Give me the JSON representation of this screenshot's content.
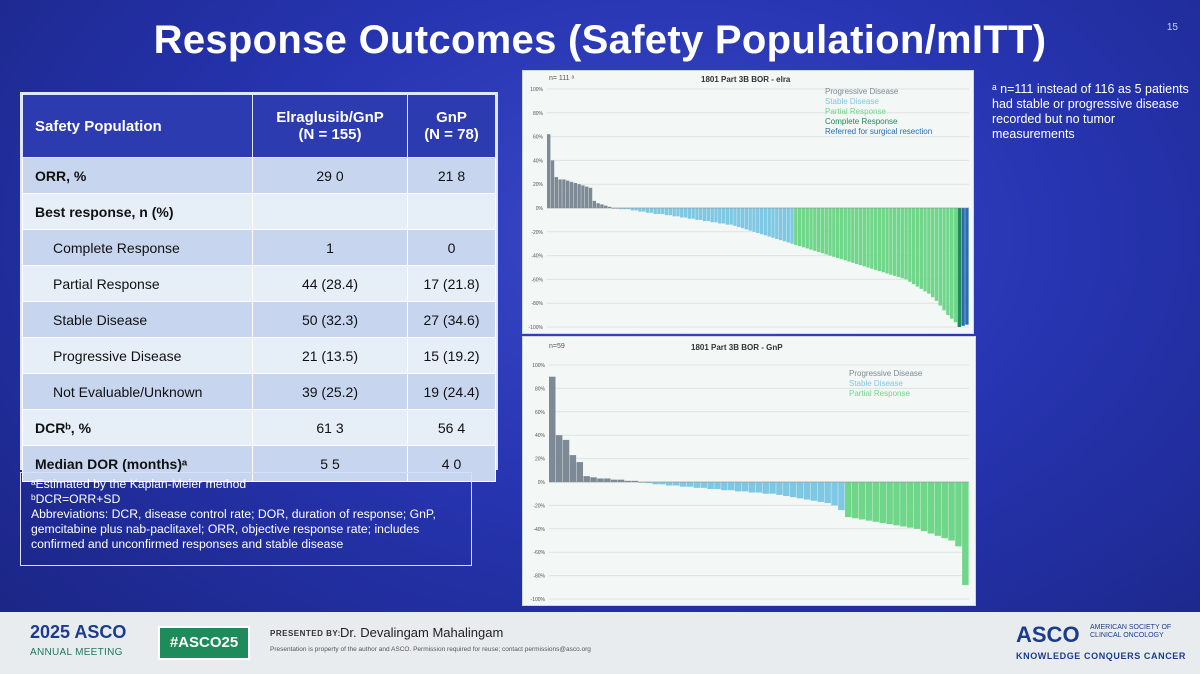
{
  "slide": {
    "title": "Response Outcomes (Safety Population/mITT)",
    "slide_number": "15"
  },
  "table": {
    "headers": [
      "Safety Population",
      "Elraglusib/GnP\n(N = 155)",
      "GnP\n(N = 78)"
    ],
    "rows": [
      {
        "label": "ORR, %",
        "v1": "29 0",
        "v2": "21 8",
        "bold": true,
        "indent": false
      },
      {
        "label": "Best response, n (%)",
        "v1": "",
        "v2": "",
        "bold": true,
        "indent": false
      },
      {
        "label": "Complete Response",
        "v1": "1",
        "v2": "0",
        "bold": false,
        "indent": true
      },
      {
        "label": "Partial Response",
        "v1": "44 (28.4)",
        "v2": "17 (21.8)",
        "bold": false,
        "indent": true
      },
      {
        "label": "Stable Disease",
        "v1": "50 (32.3)",
        "v2": "27 (34.6)",
        "bold": false,
        "indent": true
      },
      {
        "label": "Progressive Disease",
        "v1": "21 (13.5)",
        "v2": "15 (19.2)",
        "bold": false,
        "indent": true
      },
      {
        "label": "Not Evaluable/Unknown",
        "v1": "39 (25.2)",
        "v2": "19 (24.4)",
        "bold": false,
        "indent": true
      },
      {
        "label": "DCRᵇ, %",
        "v1": "61 3",
        "v2": "56 4",
        "bold": true,
        "indent": false
      },
      {
        "label": "Median DOR (months)ᵃ",
        "v1": "5 5",
        "v2": "4 0",
        "bold": true,
        "indent": false
      }
    ]
  },
  "footnotes": {
    "a": "ᵃEstimated by the Kaplan-Meier method",
    "b": "ᵇDCR=ORR+SD",
    "abbrev": "Abbreviations: DCR, disease control rate; DOR, duration of response; GnP, gemcitabine plus nab-paclitaxel; ORR, objective response rate; includes confirmed and unconfirmed responses and stable disease"
  },
  "side_note": "ᵃ n=111 instead of 116 as 5 patients had stable or progressive disease recorded but no tumor measurements",
  "chart_data": [
    {
      "type": "bar",
      "title": "1801 Part 3B BOR - elra",
      "n_label": "n= 111 ᵃ",
      "ylim": [
        -100,
        100
      ],
      "ytick_labels": [
        "100%",
        "80%",
        "60%",
        "40%",
        "20%",
        "0%",
        "-20%",
        "-40%",
        "-60%",
        "-80%",
        "-100%"
      ],
      "legend": [
        {
          "name": "Progressive Disease",
          "color": "#7d8a96"
        },
        {
          "name": "Stable Disease",
          "color": "#7ec8e3"
        },
        {
          "name": "Partial Response",
          "color": "#6fd68a"
        },
        {
          "name": "Complete Response",
          "color": "#1e8a5a"
        },
        {
          "name": "Referred for surgical resection",
          "color": "#2b6cb0"
        }
      ],
      "series_groups": [
        {
          "name": "Progressive Disease",
          "color": "#7d8a96",
          "values": [
            62,
            40,
            26,
            24,
            24,
            23,
            22,
            21,
            20,
            19,
            18,
            17,
            6,
            4,
            3,
            2,
            1,
            0,
            0
          ]
        },
        {
          "name": "Stable Disease",
          "color": "#7ec8e3",
          "values": [
            -1,
            -1,
            -1,
            -2,
            -2,
            -3,
            -3,
            -4,
            -4,
            -5,
            -5,
            -5,
            -6,
            -6,
            -7,
            -7,
            -8,
            -8,
            -9,
            -9,
            -10,
            -10,
            -11,
            -11,
            -12,
            -12,
            -13,
            -13,
            -14,
            -14,
            -15,
            -16,
            -17,
            -18,
            -19,
            -20,
            -21,
            -22,
            -23,
            -24,
            -25,
            -26,
            -27,
            -28,
            -29,
            -30
          ]
        },
        {
          "name": "Partial Response",
          "color": "#6fd68a",
          "values": [
            -31,
            -32,
            -33,
            -34,
            -35,
            -36,
            -37,
            -38,
            -39,
            -40,
            -41,
            -42,
            -43,
            -44,
            -45,
            -46,
            -47,
            -48,
            -49,
            -50,
            -51,
            -52,
            -53,
            -54,
            -55,
            -56,
            -57,
            -58,
            -59,
            -60,
            -62,
            -64,
            -66,
            -68,
            -70,
            -72,
            -75,
            -78,
            -82,
            -86,
            -90,
            -93,
            -96
          ]
        },
        {
          "name": "Complete Response",
          "color": "#1e8a5a",
          "values": [
            -100
          ]
        },
        {
          "name": "Referred for surgical resection",
          "color": "#2b6cb0",
          "values": [
            -99,
            -98
          ]
        }
      ]
    },
    {
      "type": "bar",
      "title": "1801 Part 3B BOR - GnP",
      "n_label": "n=59",
      "ylim": [
        -100,
        100
      ],
      "ytick_labels": [
        "100%",
        "80%",
        "60%",
        "40%",
        "20%",
        "0%",
        "-20%",
        "-40%",
        "-60%",
        "-80%",
        "-100%"
      ],
      "legend": [
        {
          "name": "Progressive Disease",
          "color": "#7d8a96"
        },
        {
          "name": "Stable Disease",
          "color": "#7ec8e3"
        },
        {
          "name": "Partial Response",
          "color": "#6fd68a"
        }
      ],
      "series_groups": [
        {
          "name": "Progressive Disease",
          "color": "#7d8a96",
          "values": [
            90,
            40,
            36,
            23,
            17,
            5,
            4,
            3,
            3,
            2,
            2,
            1,
            1,
            0
          ]
        },
        {
          "name": "Stable Disease",
          "color": "#7ec8e3",
          "values": [
            -1,
            -2,
            -2,
            -3,
            -3,
            -4,
            -4,
            -5,
            -5,
            -6,
            -6,
            -7,
            -7,
            -8,
            -8,
            -9,
            -9,
            -10,
            -10,
            -11,
            -12,
            -13,
            -14,
            -15,
            -16,
            -17,
            -18,
            -20,
            -24
          ]
        },
        {
          "name": "Partial Response",
          "color": "#6fd68a",
          "values": [
            -30,
            -31,
            -32,
            -33,
            -34,
            -35,
            -36,
            -37,
            -38,
            -39,
            -40,
            -42,
            -44,
            -46,
            -48,
            -50,
            -55,
            -88
          ]
        }
      ]
    }
  ],
  "footer": {
    "year_brand": "2025 ASCO",
    "meeting": "ANNUAL MEETING",
    "hashtag": "#ASCO25",
    "presented_by": "PRESENTED BY:",
    "presenter": "Dr. Devalingam Mahalingam",
    "disclaimer": "Presentation is property of the author and ASCO. Permission required for reuse; contact permissions@asco.org",
    "asco": "ASCO",
    "society": "AMERICAN SOCIETY OF CLINICAL ONCOLOGY",
    "tagline": "KNOWLEDGE CONQUERS CANCER"
  }
}
